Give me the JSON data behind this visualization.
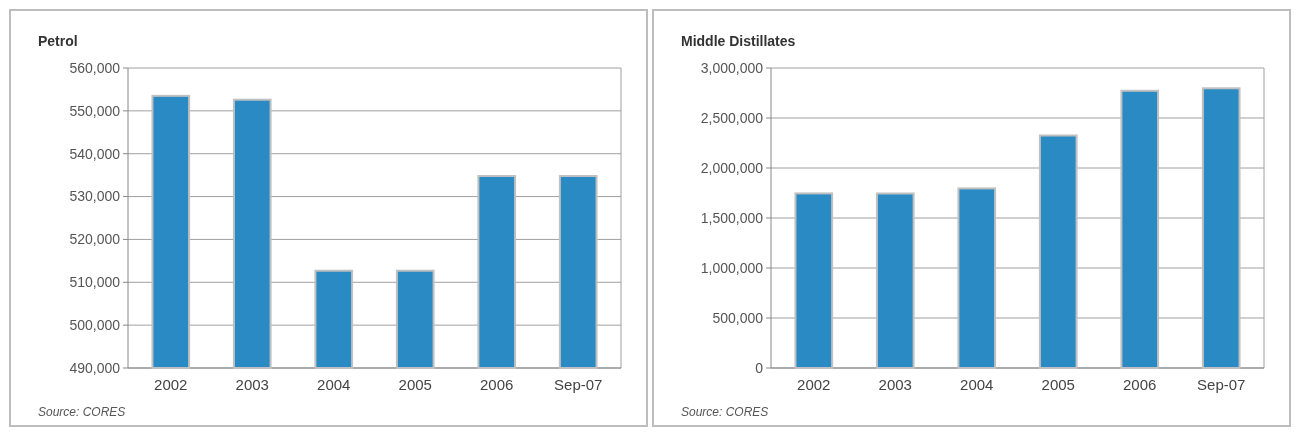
{
  "chart_data": [
    {
      "type": "bar",
      "title": "Petrol",
      "categories": [
        "2002",
        "2003",
        "2004",
        "2005",
        "2006",
        "Sep-07"
      ],
      "values": [
        553500,
        552600,
        512700,
        512700,
        534800,
        534800
      ],
      "color": "#2a8ac4",
      "ylim": [
        490000,
        560000
      ],
      "yticks": [
        {
          "value": 490000,
          "label": "490,000"
        },
        {
          "value": 500000,
          "label": "500,000"
        },
        {
          "value": 510000,
          "label": "510,000"
        },
        {
          "value": 520000,
          "label": "520,000"
        },
        {
          "value": 530000,
          "label": "530,000"
        },
        {
          "value": 540000,
          "label": "540,000"
        },
        {
          "value": 550000,
          "label": "550,000"
        },
        {
          "value": 560000,
          "label": "560,000"
        }
      ],
      "grid": "y",
      "annotations": [
        "Source: CORES"
      ]
    },
    {
      "type": "bar",
      "title": "Middle Distillates",
      "categories": [
        "2002",
        "2003",
        "2004",
        "2005",
        "2006",
        "Sep-07"
      ],
      "values": [
        1746000,
        1745000,
        1796000,
        2325000,
        2772000,
        2797000
      ],
      "color": "#2a8ac4",
      "ylim": [
        0,
        3000000
      ],
      "yticks": [
        0,
        {
          "value": 500000,
          "label": "500,000"
        },
        {
          "value": 1000000,
          "label": "1,000,000"
        },
        {
          "value": 1500000,
          "label": "1,500,000"
        },
        {
          "value": 2000000,
          "label": "2,000,000"
        },
        {
          "value": 2500000,
          "label": "2,500,000"
        },
        {
          "value": 3000000,
          "label": "3,000,000"
        }
      ],
      "grid": "y",
      "annotations": [
        "Source: CORES"
      ]
    }
  ]
}
